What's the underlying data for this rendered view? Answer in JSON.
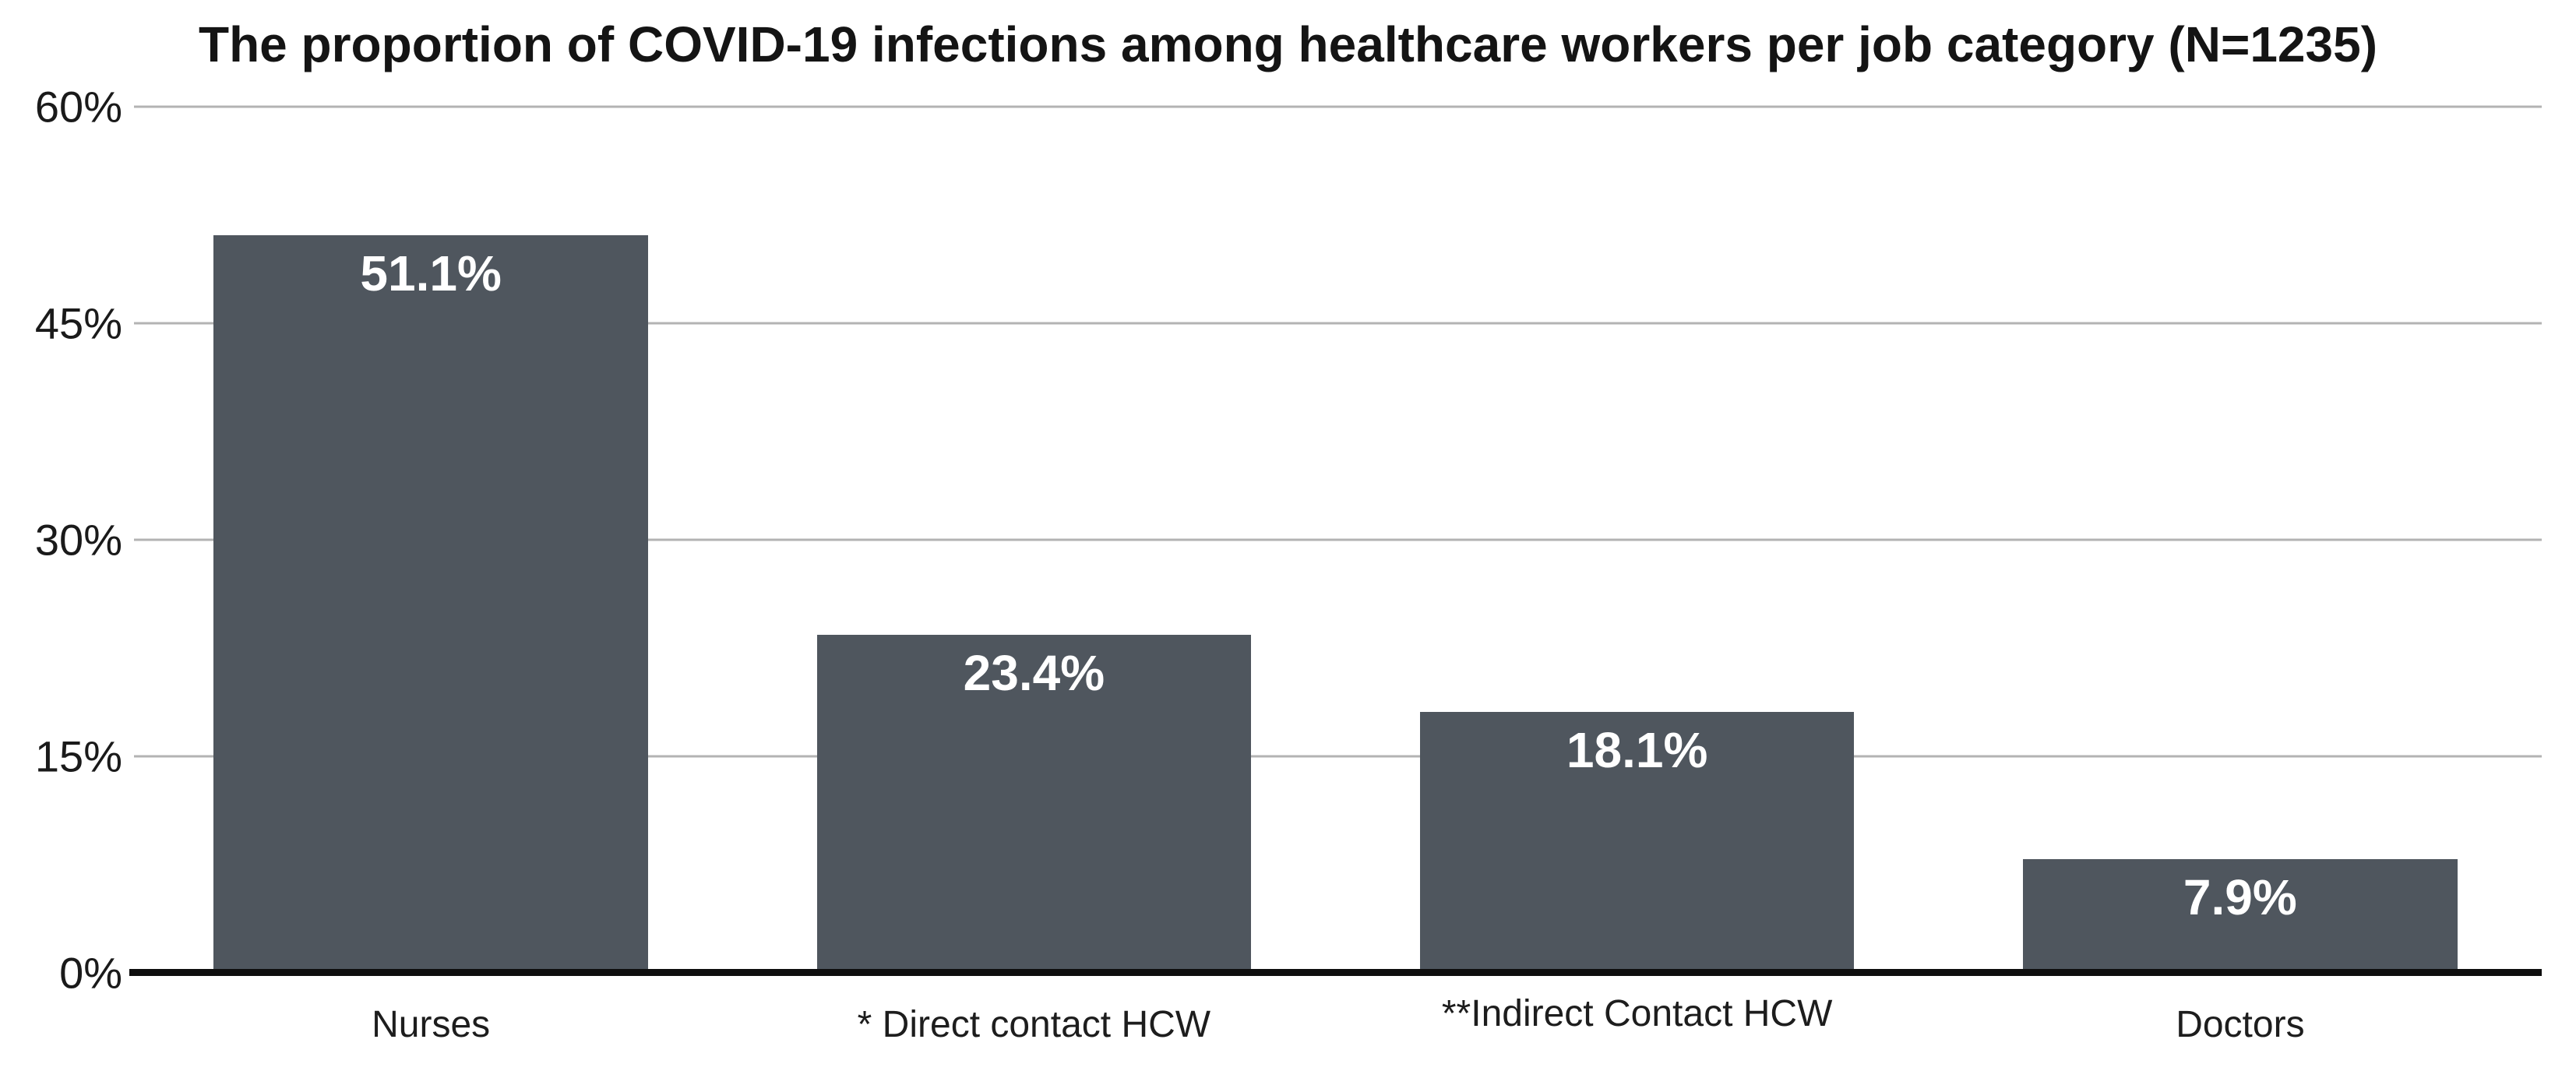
{
  "chart_data": {
    "type": "bar",
    "title": "The proportion of COVID-19 infections among healthcare workers per job category (N=1235)",
    "categories": [
      "Nurses",
      "* Direct contact HCW",
      "**Indirect Contact HCW",
      "Doctors"
    ],
    "values": [
      51.1,
      23.4,
      18.1,
      7.9
    ],
    "value_labels": [
      "51.1%",
      "23.4%",
      "18.1%",
      "7.9%"
    ],
    "y_ticks": [
      {
        "label": "60%",
        "value": 60
      },
      {
        "label": "45%",
        "value": 45
      },
      {
        "label": "30%",
        "value": 30
      },
      {
        "label": "15%",
        "value": 15
      },
      {
        "label": "0%",
        "value": 0
      }
    ],
    "ylim": [
      0,
      60
    ],
    "xlabel": "",
    "ylabel": "",
    "grid": "horizontal-only",
    "legend_position": "none",
    "colors": {
      "bar": "#4f565e",
      "bar_value_label": "#ffffff",
      "gridline": "#b3b3b3",
      "baseline": "#0e0e0e",
      "background": "#ffffff",
      "title_text": "#141414",
      "tick_text": "#1a1a1a"
    }
  }
}
